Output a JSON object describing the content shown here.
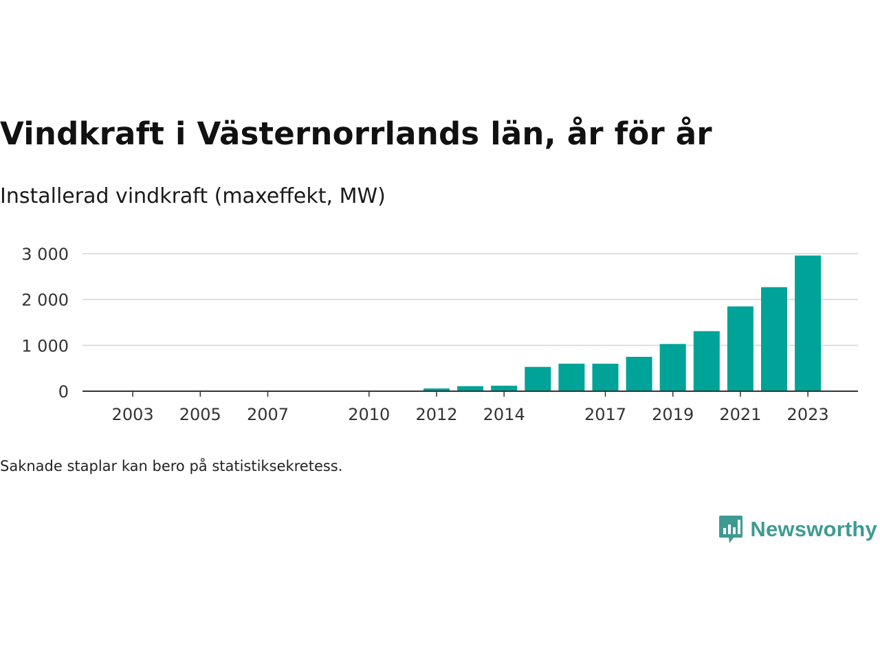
{
  "title": "Vindkraft i Västernorrlands län, år för år",
  "subtitle": "Installerad vindkraft (maxeffekt, MW)",
  "footnote": "Saknade staplar kan bero på statistiksekretess.",
  "brand": {
    "name": "Newsworthy",
    "color": "#3d9b93",
    "icon": "newsworthy-logo-icon"
  },
  "chart_data": {
    "type": "bar",
    "title": "Vindkraft i Västernorrlands län, år för år",
    "subtitle": "Installerad vindkraft (maxeffekt, MW)",
    "xlabel": "",
    "ylabel": "",
    "categories": [
      "2002",
      "2003",
      "2004",
      "2005",
      "2006",
      "2007",
      "2008",
      "2009",
      "2010",
      "2011",
      "2012",
      "2013",
      "2014",
      "2015",
      "2016",
      "2017",
      "2018",
      "2019",
      "2020",
      "2021",
      "2022",
      "2023"
    ],
    "values": [
      0,
      0,
      0,
      0,
      0,
      0,
      0,
      0,
      0,
      0,
      60,
      110,
      120,
      530,
      600,
      600,
      750,
      1030,
      1310,
      1850,
      2270,
      2960
    ],
    "x_tick_labels": [
      "2003",
      "2005",
      "2007",
      "2010",
      "2012",
      "2014",
      "2017",
      "2019",
      "2021",
      "2023"
    ],
    "y_ticks": [
      0,
      1000,
      2000,
      3000
    ],
    "y_tick_labels": [
      "0",
      "1 000",
      "2 000",
      "3 000"
    ],
    "ylim": [
      0,
      3000
    ],
    "bar_color": "#00a398",
    "grid": true,
    "legend": "none"
  }
}
